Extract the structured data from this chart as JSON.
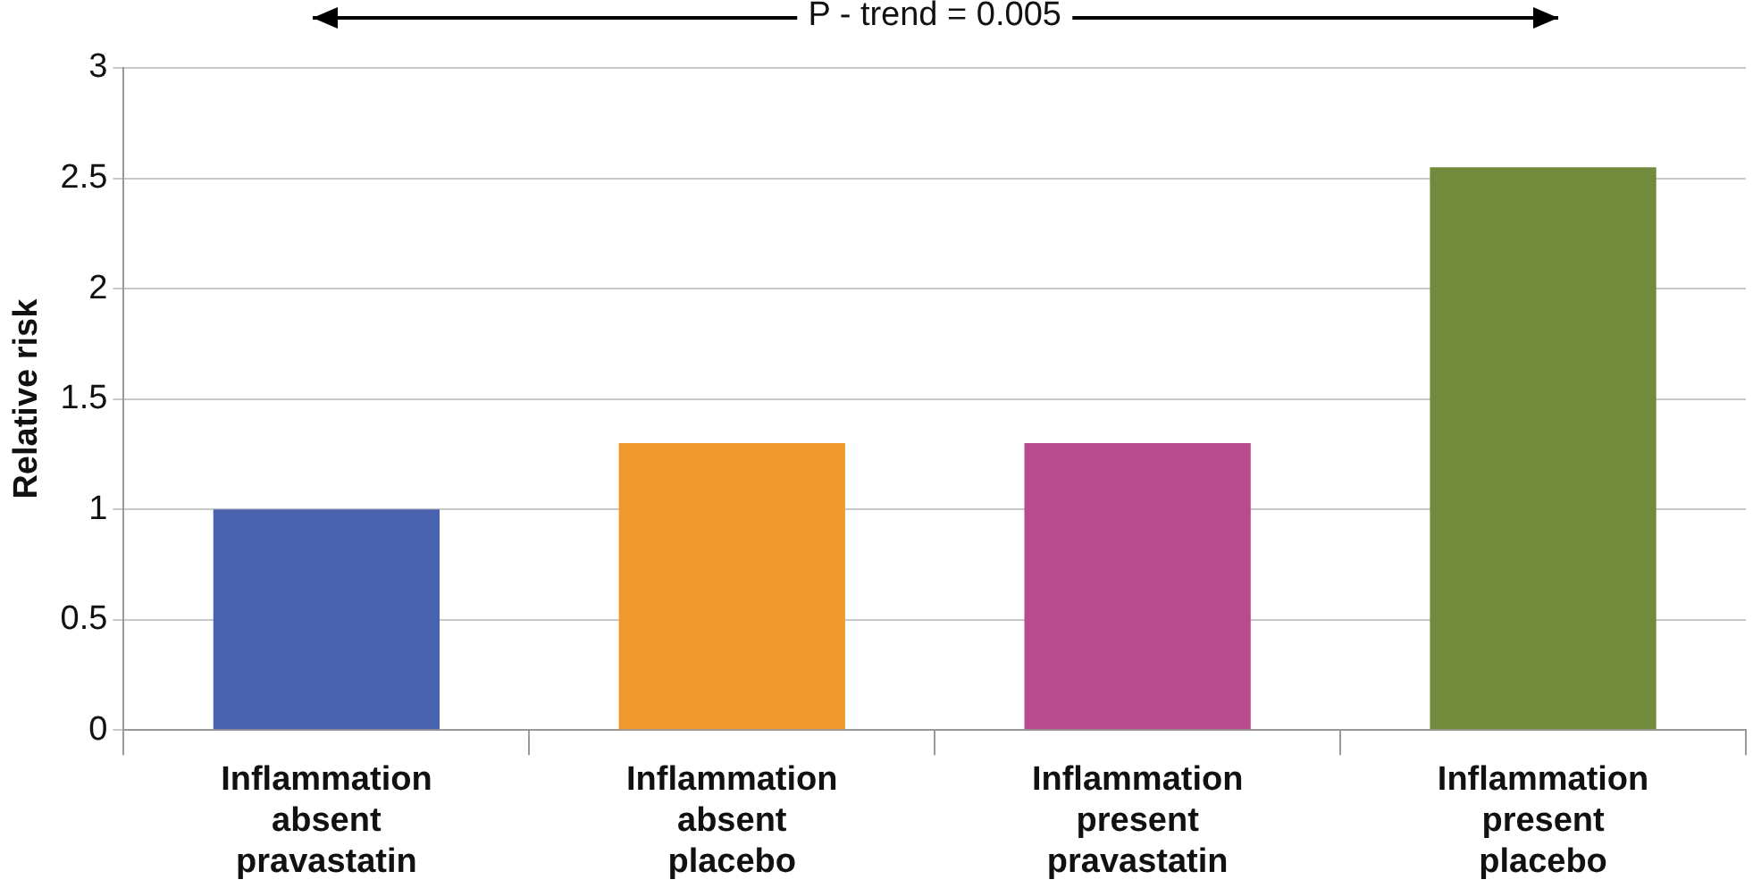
{
  "chart_data": {
    "type": "bar",
    "ylabel": "Relative risk",
    "categories": [
      "Inflammation absent pravastatin",
      "Inflammation absent placebo",
      "Inflammation present pravastatin",
      "Inflammation present placebo"
    ],
    "values": [
      1.0,
      1.3,
      1.3,
      2.55
    ],
    "colors": [
      "#4a63b0",
      "#f0982c",
      "#b84a8e",
      "#728a3c"
    ],
    "ylim": [
      0,
      3
    ],
    "yticks": [
      0,
      0.5,
      1,
      1.5,
      2,
      2.5,
      3
    ],
    "grid": "y",
    "legend": false,
    "annotations": [
      "P - trend = 0.005"
    ]
  }
}
